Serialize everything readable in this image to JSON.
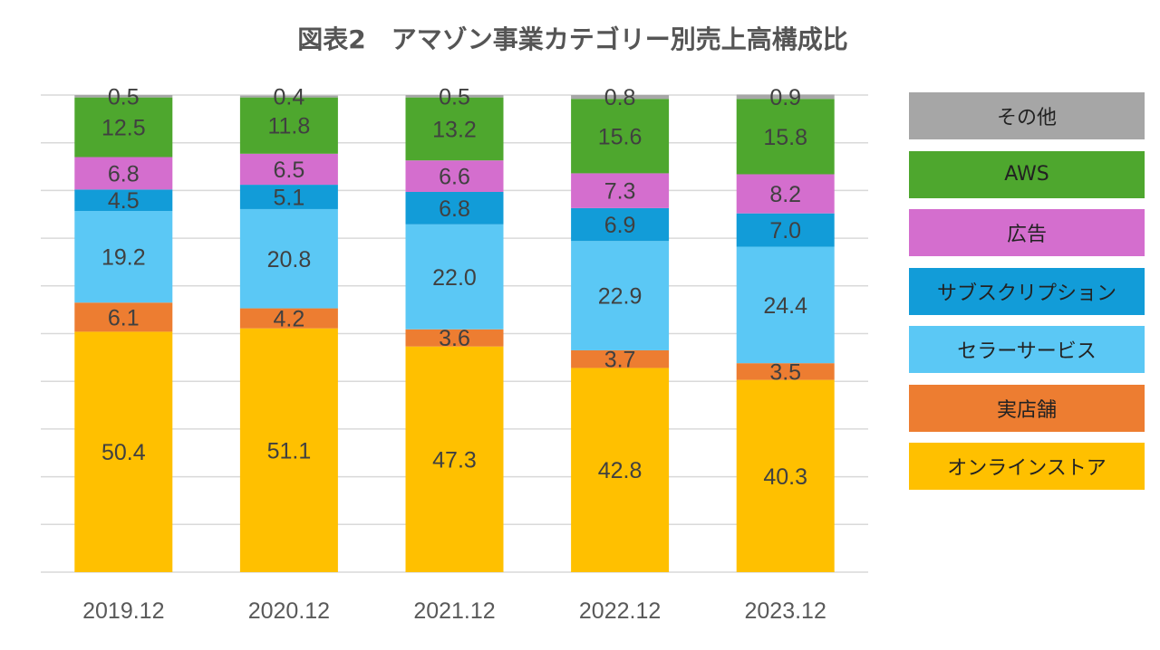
{
  "chart_data": {
    "type": "bar",
    "stacked": true,
    "title": "図表2　アマゾン事業カテゴリー別売上高構成比",
    "categories": [
      "2019.12",
      "2020.12",
      "2021.12",
      "2022.12",
      "2023.12"
    ],
    "series": [
      {
        "name": "オンラインストア",
        "color": "#FFC000",
        "values": [
          50.4,
          51.1,
          47.3,
          42.8,
          40.3
        ]
      },
      {
        "name": "実店舗",
        "color": "#ED7D31",
        "values": [
          6.1,
          4.2,
          3.6,
          3.7,
          3.5
        ]
      },
      {
        "name": "セラーサービス",
        "color": "#5BC8F5",
        "values": [
          19.2,
          20.8,
          22.0,
          22.9,
          24.4
        ]
      },
      {
        "name": "サブスクリプション",
        "color": "#129CD8",
        "values": [
          4.5,
          5.1,
          6.8,
          6.9,
          7.0
        ]
      },
      {
        "name": "広告",
        "color": "#D46ECE",
        "values": [
          6.8,
          6.5,
          6.6,
          7.3,
          8.2
        ]
      },
      {
        "name": "AWS",
        "color": "#4EA72E",
        "values": [
          12.5,
          11.8,
          13.2,
          15.6,
          15.8
        ]
      },
      {
        "name": "その他",
        "color": "#A6A6A6",
        "values": [
          0.5,
          0.4,
          0.5,
          0.8,
          0.9
        ]
      }
    ],
    "ylim": [
      0,
      100
    ],
    "grid": true,
    "legend_position": "right"
  }
}
